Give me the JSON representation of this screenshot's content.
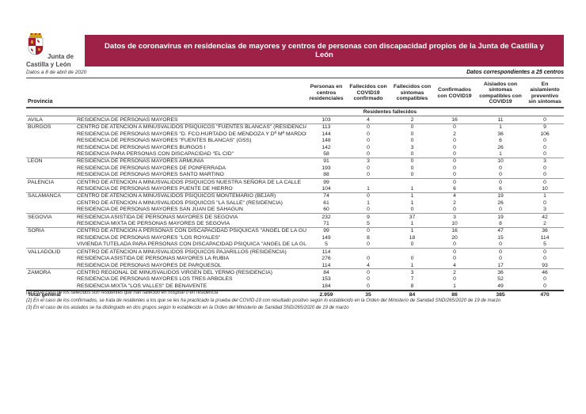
{
  "page": {
    "logo_line1": "Junta de",
    "logo_line2": "Castilla y León",
    "date_note": "Datos a 8 de abril de 2020",
    "banner_title": "Datos de coronavirus en residencias de mayores y centros de personas con discapacidad propios de la Junta de Castilla y León",
    "centers_note": "Datos correspondientes a 25 centros",
    "banner_color": "#9E2247"
  },
  "table": {
    "province_header": "Provincia",
    "columns": [
      "Personas en centros residenciales",
      "Fallecidos con COVID19 confirmado",
      "Fallecidos con síntomas compatibles",
      "Confirmados con COVID19",
      "Aislados con síntomas compatibles con COVID19",
      "En aislamiento preventivo sin síntomas"
    ],
    "subheader": "Residentes fallecidos",
    "groups": [
      {
        "province": "AVILA",
        "rows": [
          {
            "center": "RESIDENCIA DE PERSONAS MAYORES",
            "values": [
              "103",
              "4",
              "2",
              "16",
              "11",
              "0"
            ]
          }
        ]
      },
      {
        "province": "BURGOS",
        "rows": [
          {
            "center": "CENTRO DE ATENCION A MINUSVALIDOS PSIQUICOS \"FUENTES BLANCAS\" (RESIDENCIA)",
            "values": [
              "113",
              "0",
              "0",
              "0",
              "1",
              "9"
            ]
          },
          {
            "center": "RESIDENCIA DE PERSONAS MAYORES \"D. FCO.HURTADO DE MENDOZA Y Dª Mª MARDONES\"",
            "values": [
              "144",
              "0",
              "0",
              "2",
              "36",
              "106"
            ]
          },
          {
            "center": "RESIDENCIA DE PERSONAS MAYORES \"FUENTES BLANCAS\" (GSS)",
            "values": [
              "148",
              "0",
              "0",
              "0",
              "6",
              "0"
            ]
          },
          {
            "center": "RESIDENCIA DE PERSONAS MAYORES BURGOS I",
            "values": [
              "142",
              "0",
              "3",
              "0",
              "26",
              "0"
            ]
          },
          {
            "center": "RESIDENCIA PARA PERSONAS CON DISCAPACIDAD  \"EL CID\"",
            "values": [
              "58",
              "0",
              "0",
              "0",
              "1",
              "0"
            ]
          }
        ]
      },
      {
        "province": "LEON",
        "rows": [
          {
            "center": "RESIDENCIA DE PERSONAS MAYORES ARMUNIA",
            "values": [
              "91",
              "3",
              "0",
              "0",
              "10",
              "3"
            ]
          },
          {
            "center": "RESIDENCIA DE PERSONAS MAYORES DE PONFERRADA",
            "values": [
              "193",
              "0",
              "0",
              "0",
              "0",
              "0"
            ]
          },
          {
            "center": "RESIDENCIA DE PERSONAS MAYORES SANTO MARTINO",
            "values": [
              "88",
              "0",
              "0",
              "0",
              "0",
              "0"
            ]
          }
        ]
      },
      {
        "province": "PALENCIA",
        "rows": [
          {
            "center": "CENTRO DE ATENCION A MINUSVALIDOS PSIQUICOS NUESTRA SEÑORA DE LA CALLE",
            "values": [
              "99",
              "",
              "",
              "0",
              "0",
              "0"
            ]
          },
          {
            "center": "RESIDENCIA DE PERSONAS MAYORES PUENTE DE HIERRO",
            "values": [
              "104",
              "1",
              "1",
              "6",
              "6",
              "10"
            ]
          }
        ]
      },
      {
        "province": "SALAMANCA",
        "rows": [
          {
            "center": "CENTRO DE ATENCION A MINUSVALIDOS PSIQUICOS MONTEMARIO (BEJAR)",
            "values": [
              "74",
              "0",
              "1",
              "4",
              "19",
              "1"
            ]
          },
          {
            "center": "CENTRO DE ATENCION A MINUSVALIDOS PSIQUICOS \"LA SALLE\" (RESIDENCIA)",
            "values": [
              "61",
              "1",
              "1",
              "2",
              "26",
              "0"
            ]
          },
          {
            "center": "RESIDENCIA DE PERSONAS MAYORES SAN JUAN DE SAHAGUN",
            "values": [
              "60",
              "0",
              "0",
              "0",
              "0",
              "3"
            ]
          }
        ]
      },
      {
        "province": "SEGOVIA",
        "rows": [
          {
            "center": "RESIDENCIA ASISTIDA DE PERSONAS MAYORES DE SEGOVIA",
            "values": [
              "232",
              "9",
              "37",
              "3",
              "19",
              "42"
            ]
          },
          {
            "center": "RESIDENCIA MIXTA DE PERSONAS MAYORES DE SEGOVIA",
            "values": [
              "71",
              "5",
              "1",
              "10",
              "8",
              "2"
            ]
          }
        ]
      },
      {
        "province": "SORIA",
        "rows": [
          {
            "center": "CENTRO DE ATENCION A PERSONAS CON DISCAPACIDAD PSIQUICAS \"ANGEL DE LA GUARDA\"",
            "values": [
              "99",
              "0",
              "1",
              "16",
              "47",
              "36"
            ]
          },
          {
            "center": "RESIDENCIA DE PERSONAS MAYORES \"LOS ROYALES\"",
            "values": [
              "149",
              "8",
              "18",
              "20",
              "15",
              "114"
            ]
          },
          {
            "center": "VIVIENDA TUTELADA PARA PERSONAS CON DISCAPACIDAD PSIQUICA \"ANGEL DE LA GUARDA\"",
            "values": [
              "5",
              "0",
              "0",
              "0",
              "0",
              "5"
            ]
          }
        ]
      },
      {
        "province": "VALLADOLID",
        "rows": [
          {
            "center": "CENTRO DE ATENCION A MINUSVALIDOS PSIQUICOS PAJARILLOS (RESIDENCIA)",
            "values": [
              "114",
              "",
              "",
              "0",
              "0",
              "0"
            ]
          },
          {
            "center": "RESIDENCIA ASISTIDA DE PERSONAS MAYORES LA RUBIA",
            "values": [
              "276",
              "0",
              "0",
              "0",
              "0",
              "0"
            ]
          },
          {
            "center": "RESIDENCIA DE PERSONAS MAYORES DE PARQUESOL",
            "values": [
              "114",
              "4",
              "1",
              "4",
              "17",
              "93"
            ]
          }
        ]
      },
      {
        "province": "ZAMORA",
        "rows": [
          {
            "center": "CENTRO REGIONAL DE MINUSVALIDOS VIRGEN DEL YERMO (RESIDENCIA)",
            "values": [
              "84",
              "0",
              "3",
              "2",
              "36",
              "46"
            ]
          },
          {
            "center": "RESIDENCIA DE PERSONAS MAYORES LOS TRES ARBOLES",
            "values": [
              "153",
              "0",
              "7",
              "0",
              "52",
              "0"
            ]
          },
          {
            "center": "RESIDENCIA MIXTA \"LOS VALLES\"  DE BENAVENTE",
            "values": [
              "184",
              "0",
              "8",
              "1",
              "49",
              "0"
            ]
          }
        ]
      }
    ],
    "total": {
      "label": "Total general",
      "values": [
        "2.959",
        "35",
        "84",
        "86",
        "385",
        "470"
      ]
    }
  },
  "footnotes": [
    "(1) En el caso de los fallecidos son residentes que han fallecido en hospital o en residencia",
    "(2) En el caso de los confirmados, se trata de residentes a los que se les ha practicado la prueba del COVID-19 con resultado positivo según lo establecido en la Orden del Ministerio de Sanidad SND/265/2020 de 19 de marzo",
    "(3) En el caso de los aislados se ha distinguido en dos grupos según lo establecido en la Orden del Ministerio de Sanidad SND/265/2020 de 19 de marzo"
  ]
}
